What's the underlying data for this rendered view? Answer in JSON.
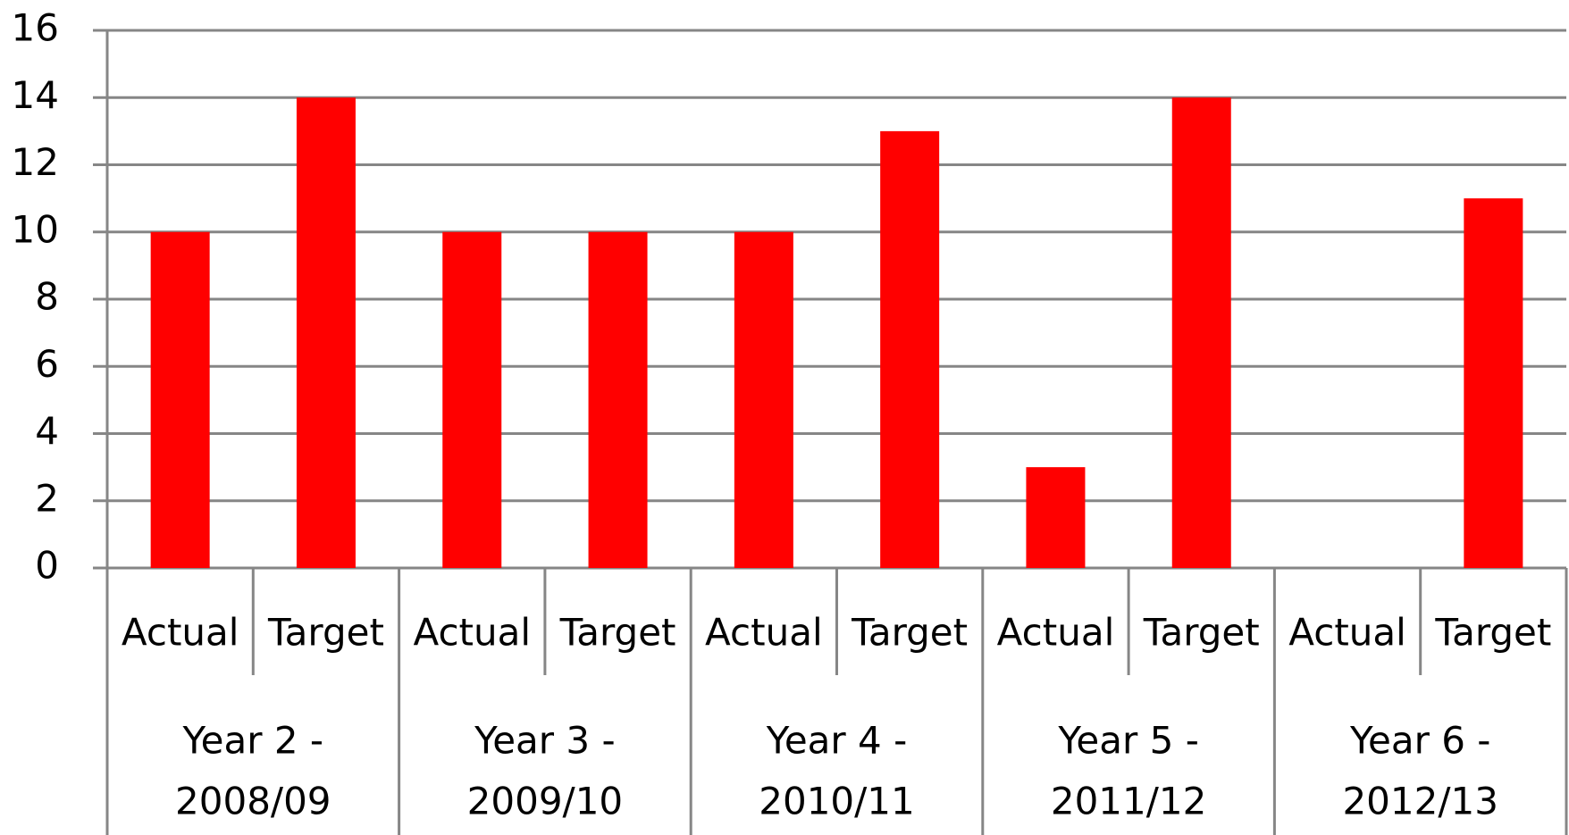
{
  "chart_data": {
    "type": "bar",
    "categories": [
      "Actual",
      "Target",
      "Actual",
      "Target",
      "Actual",
      "Target",
      "Actual",
      "Target",
      "Actual",
      "Target"
    ],
    "groups": [
      {
        "label": [
          "Year 2 -",
          "2008/09"
        ]
      },
      {
        "label": [
          "Year 3 -",
          "2009/10"
        ]
      },
      {
        "label": [
          "Year 4 -",
          "2010/11"
        ]
      },
      {
        "label": [
          "Year 5 -",
          "2011/12"
        ]
      },
      {
        "label": [
          "Year 6 -",
          "2012/13"
        ]
      }
    ],
    "values": [
      10,
      14,
      10,
      10,
      10,
      13,
      3,
      14,
      null,
      11
    ],
    "color": "#ff0000",
    "ylim": [
      0,
      16
    ],
    "yticks": [
      0,
      2,
      4,
      6,
      8,
      10,
      12,
      14,
      16
    ],
    "grid": true
  }
}
